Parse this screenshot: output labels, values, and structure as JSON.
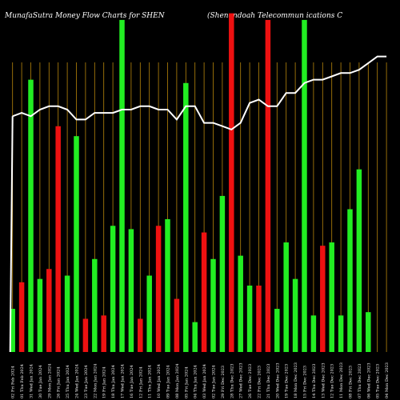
{
  "chart_data": {
    "type": "bar",
    "title": "MunafaSutra  Money Flow  Charts for SHEN",
    "subtitle": "(Shenandoah Telecommun                       ications C",
    "categories": [
      "02 Fri Feb 2024",
      "01 Thu Feb 2024",
      "31 Wed Jan 2024",
      "30 Tue Jan 2024",
      "29 Mon Jan 2024",
      "26 Fri Jan 2024",
      "25 Thu Jan 2024",
      "24 Wed Jan 2024",
      "23 Tue Jan 2024",
      "22 Mon Jan 2024",
      "19 Fri Jan 2024",
      "18 Thu Jan 2024",
      "17 Wed Jan 2024",
      "16 Tue Jan 2024",
      "12 Fri Jan 2024",
      "11 Thu Jan 2024",
      "10 Wed Jan 2024",
      "09 Tue Jan 2024",
      "08 Mon Jan 2024",
      "05 Fri Jan 2024",
      "04 Thu Jan 2024",
      "03 Wed Jan 2024",
      "02 Tue Jan 2024",
      "29 Fri Dec 2023",
      "28 Thu Dec 2023",
      "27 Wed Dec 2023",
      "26 Tue Dec 2023",
      "22 Fri Dec 2023",
      "21 Thu Dec 2023",
      "20 Wed Dec 2023",
      "19 Tue Dec 2023",
      "18 Mon Dec 2023",
      "15 Fri Dec 2023",
      "14 Thu Dec 2023",
      "13 Wed Dec 2023",
      "12 Tue Dec 2023",
      "11 Mon Dec 2023",
      "08 Fri Dec 2023",
      "07 Thu Dec 2023",
      "06 Wed Dec 2023",
      "05 Tue Dec 2023",
      "04 Mon Dec 2023"
    ],
    "bar_colors": [
      "green",
      "red",
      "green",
      "green",
      "red",
      "red",
      "green",
      "green",
      "red",
      "green",
      "red",
      "green",
      "green",
      "green",
      "red",
      "green",
      "red",
      "green",
      "red",
      "green",
      "green",
      "red",
      "green",
      "green",
      "red",
      "green",
      "green",
      "red",
      "red",
      "green",
      "green",
      "green",
      "green",
      "green",
      "red",
      "green",
      "green",
      "green",
      "green",
      "green",
      "green",
      "green"
    ],
    "values": [
      13,
      21,
      82,
      22,
      25,
      68,
      23,
      65,
      10,
      28,
      11,
      38,
      100,
      37,
      10,
      23,
      38,
      40,
      16,
      81,
      9,
      36,
      28,
      47,
      102,
      29,
      20,
      20,
      100,
      13,
      33,
      22,
      100,
      11,
      32,
      33,
      11,
      43,
      55,
      12,
      0,
      0
    ],
    "price_line": [
      71,
      72,
      71,
      73,
      74,
      74,
      73,
      70,
      70,
      72,
      72,
      72,
      73,
      73,
      74,
      74,
      73,
      73,
      70,
      74,
      74,
      69,
      69,
      68,
      67,
      69,
      75,
      76,
      74,
      74,
      78,
      78,
      81,
      82,
      82,
      83,
      84,
      84,
      85,
      87,
      89,
      89
    ],
    "ylim": [
      0,
      106
    ],
    "grid": "vertical",
    "colors": {
      "background": "#000000",
      "green": "#22ee22",
      "red": "#ee1111",
      "grid": "#b8860b",
      "line": "#ffffff",
      "text": "#ffffff"
    }
  }
}
